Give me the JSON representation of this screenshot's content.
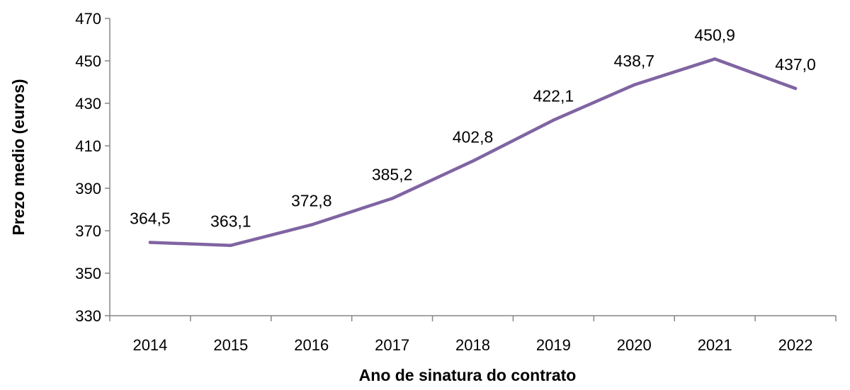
{
  "chart_data": {
    "type": "line",
    "title": "",
    "xlabel": "Ano de sinatura do contrato",
    "ylabel": "Prezo medio (euros)",
    "categories": [
      "2014",
      "2015",
      "2016",
      "2017",
      "2018",
      "2019",
      "2020",
      "2021",
      "2022"
    ],
    "series": [
      {
        "values": [
          364.5,
          363.1,
          372.8,
          385.2,
          402.8,
          422.1,
          438.7,
          450.9,
          437.0
        ],
        "data_labels": [
          "364,5",
          "363,1",
          "372,8",
          "385,2",
          "402,8",
          "422,1",
          "438,7",
          "450,9",
          "437,0"
        ],
        "color": "#8064a2"
      }
    ],
    "ylim": [
      330,
      470
    ],
    "yticks": [
      330,
      350,
      370,
      390,
      410,
      430,
      450,
      470
    ],
    "grid": false,
    "legend": "none"
  }
}
